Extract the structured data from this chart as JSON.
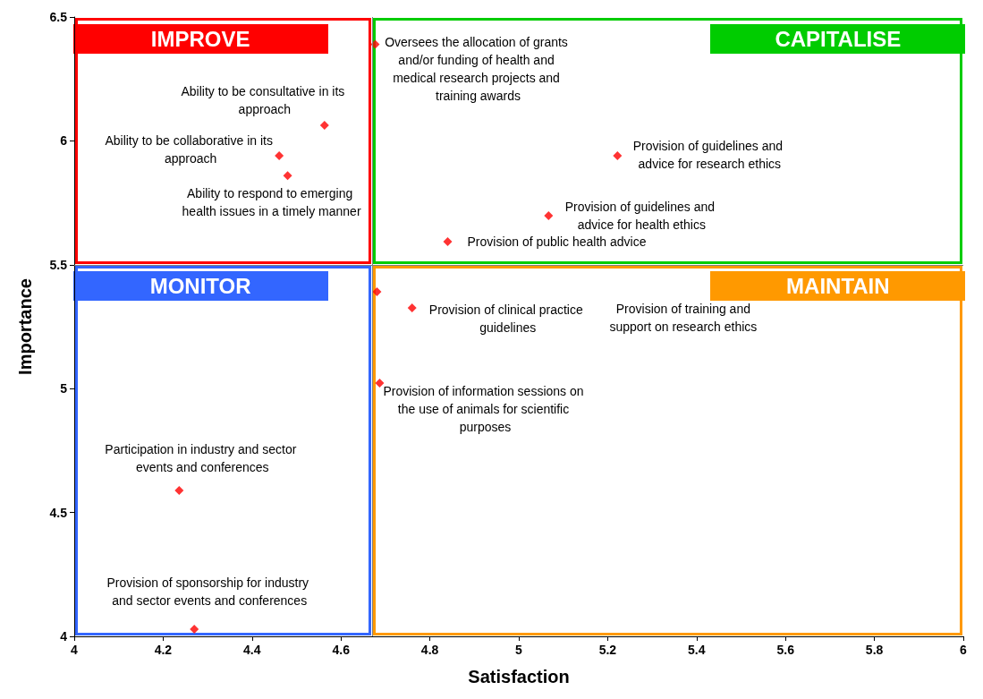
{
  "chart_data": {
    "type": "scatter",
    "xlabel": "Satisfaction",
    "ylabel": "Importance",
    "x": [
      4.677,
      4.563,
      4.461,
      4.48,
      5.222,
      5.067,
      4.84,
      4.681,
      4.76,
      4.687,
      4.236,
      4.27
    ],
    "values": [
      6.39,
      6.063,
      5.94,
      5.86,
      5.94,
      5.698,
      5.593,
      5.391,
      5.326,
      5.022,
      4.589,
      4.029
    ],
    "color": "#ff0000",
    "marker": "diamond",
    "grid": false,
    "xlim": [
      4,
      6
    ],
    "xticks": [
      4,
      4.2,
      4.4,
      4.6,
      4.8,
      5,
      5.2,
      5.4,
      5.6,
      5.8,
      6
    ],
    "ylim": [
      4,
      6.5
    ],
    "yticks": [
      4,
      4.5,
      5,
      5.5,
      6,
      6.5
    ],
    "ref_lines": [
      {
        "axis": "x",
        "value": 4.67,
        "label": null
      },
      {
        "axis": "y",
        "value": 5.5,
        "label": null
      }
    ],
    "annotations": [
      {
        "text": "Oversees the allocation of grants and/or funding of health and medical research projects and training awards",
        "x": 4.677,
        "y": 6.39
      },
      {
        "text": "Ability to be consultative in its approach",
        "x": 4.563,
        "y": 6.063
      },
      {
        "text": "Ability to be collaborative in its approach",
        "x": 4.461,
        "y": 5.94
      },
      {
        "text": "Ability to respond to emerging health issues in a timely manner",
        "x": 4.48,
        "y": 5.86
      },
      {
        "text": "Provision of guidelines and advice for research ethics",
        "x": 5.222,
        "y": 5.94
      },
      {
        "text": "Provision of guidelines and advice for health ethics",
        "x": 5.067,
        "y": 5.698
      },
      {
        "text": "Provision of public health advice",
        "x": 4.84,
        "y": 5.593
      },
      "Provision of training and support on research ethics",
      {
        "text": "Provision of clinical practice guidelines",
        "x": 4.76,
        "y": 5.326
      },
      {
        "text": "Provision of information sessions on the use of animals for scientific purposes",
        "x": 4.687,
        "y": 5.022
      },
      {
        "text": "Participation in industry and sector events and conferences",
        "x": 4.236,
        "y": 4.589
      },
      {
        "text": "Provision of sponsorship for industry and sector events and conferences",
        "x": 4.27,
        "y": 4.029
      },
      "IMPROVE",
      "CAPITALISE",
      "MONITOR",
      "MAINTAIN"
    ]
  }
}
